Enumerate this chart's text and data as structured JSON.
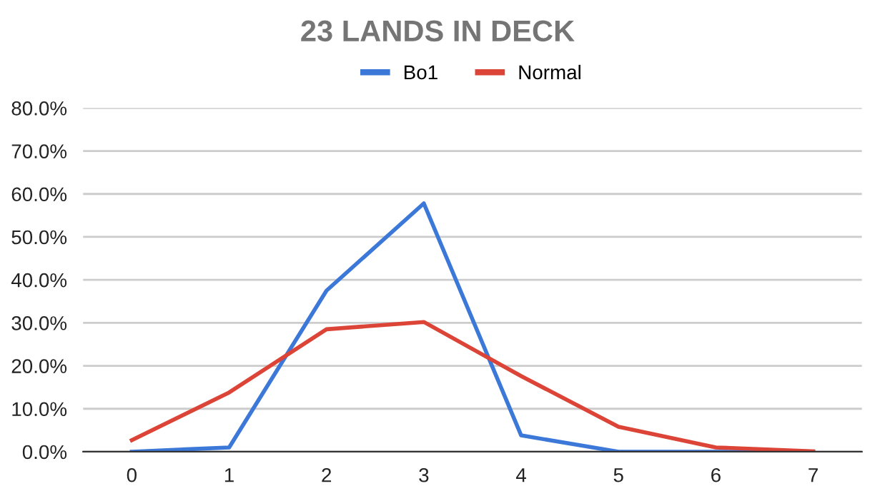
{
  "chart_data": {
    "type": "line",
    "title": "23 LANDS IN DECK",
    "categories": [
      "0",
      "1",
      "2",
      "3",
      "4",
      "5",
      "6",
      "7"
    ],
    "series": [
      {
        "name": "Bo1",
        "color": "#3c78d8",
        "values": [
          0,
          1.0,
          37.5,
          57.8,
          3.8,
          0,
          0,
          0
        ]
      },
      {
        "name": "Normal",
        "color": "#db4437",
        "values": [
          2.7,
          13.8,
          28.5,
          30.2,
          17.6,
          5.8,
          1.0,
          0.1
        ]
      }
    ],
    "ylim": [
      0,
      80
    ],
    "yticks": [
      {
        "value": 0,
        "label": "0.0%"
      },
      {
        "value": 10,
        "label": "10.0%"
      },
      {
        "value": 20,
        "label": "20.0%"
      },
      {
        "value": 30,
        "label": "30.0%"
      },
      {
        "value": 40,
        "label": "40.0%"
      },
      {
        "value": 50,
        "label": "50.0%"
      },
      {
        "value": 60,
        "label": "60.0%"
      },
      {
        "value": 70,
        "label": "70.0%"
      },
      {
        "value": 80,
        "label": "80.0%"
      }
    ],
    "grid": "y",
    "legend": "top",
    "marker": "none",
    "line_style": "solid"
  }
}
